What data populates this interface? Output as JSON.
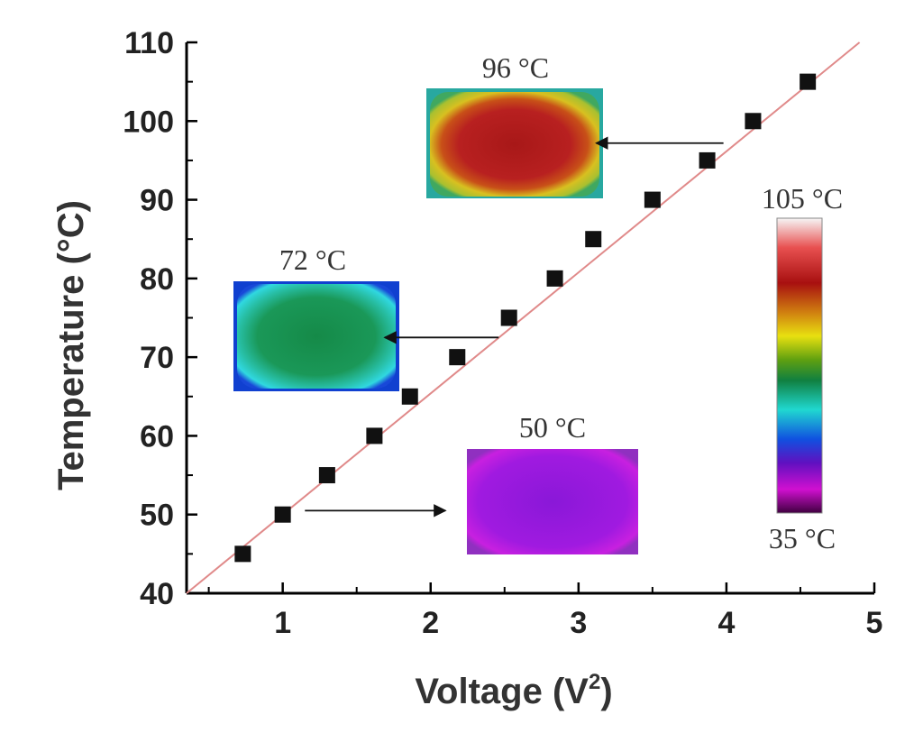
{
  "chart_data": {
    "type": "scatter",
    "xlabel": "Voltage (V",
    "xlabel_sup": "2",
    "xlabel_close": ")",
    "ylabel": "Temperature (°C)",
    "xlim": [
      0.35,
      5
    ],
    "ylim": [
      40,
      110
    ],
    "xticks": [
      "1",
      "2",
      "3",
      "4",
      "5"
    ],
    "yticks": [
      "40",
      "50",
      "60",
      "70",
      "80",
      "90",
      "100",
      "110"
    ],
    "points": [
      {
        "x": 0.73,
        "y": 45
      },
      {
        "x": 1.0,
        "y": 50
      },
      {
        "x": 1.3,
        "y": 55
      },
      {
        "x": 1.62,
        "y": 60
      },
      {
        "x": 1.86,
        "y": 65
      },
      {
        "x": 2.18,
        "y": 70
      },
      {
        "x": 2.53,
        "y": 75
      },
      {
        "x": 2.84,
        "y": 80
      },
      {
        "x": 3.1,
        "y": 85
      },
      {
        "x": 3.5,
        "y": 90
      },
      {
        "x": 3.87,
        "y": 95
      },
      {
        "x": 4.18,
        "y": 100
      },
      {
        "x": 4.55,
        "y": 105
      }
    ],
    "fit_line": {
      "x": [
        0.35,
        4.9
      ],
      "y": [
        40,
        110
      ],
      "color": "#e08a8a"
    },
    "marker_color": "#111111",
    "grid": false,
    "annotations": [
      {
        "label": "96 °C",
        "arrow_from": {
          "x": 3.98,
          "y": 97.2
        },
        "arrow_to": {
          "x": 3.12,
          "y": 97.2
        }
      },
      {
        "label": "72 °C",
        "arrow_from": {
          "x": 2.46,
          "y": 72.5
        },
        "arrow_to": {
          "x": 1.69,
          "y": 72.5
        }
      },
      {
        "label": "50 °C",
        "arrow_from": {
          "x": 1.15,
          "y": 50.5
        },
        "arrow_to": {
          "x": 2.1,
          "y": 50.5
        }
      }
    ],
    "colorbar": {
      "max_label": "105 °C",
      "min_label": "35 °C"
    }
  }
}
